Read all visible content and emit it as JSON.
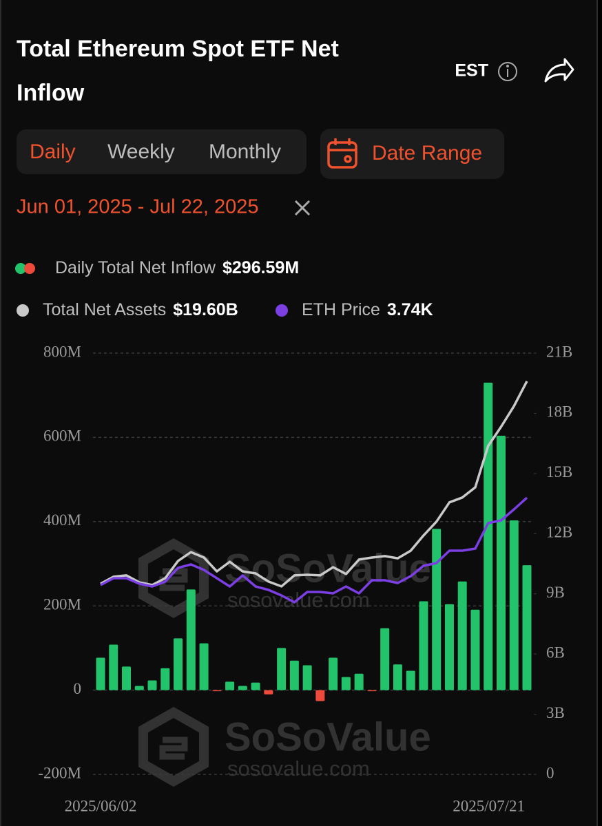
{
  "header": {
    "title_line1": "Total Ethereum Spot ETF Net",
    "title_line2": "Inflow",
    "timezone": "EST"
  },
  "tabs": [
    "Daily",
    "Weekly",
    "Monthly"
  ],
  "active_tab": 0,
  "date_range_button": "Date Range",
  "date_range": "Jun 01, 2025 - Jul 22, 2025",
  "watermark": {
    "brand": "SoSoValue",
    "site": "sosovalue.com"
  },
  "chart_data": {
    "type": "combo",
    "categories": [
      "2025/06/02",
      null,
      null,
      null,
      null,
      null,
      null,
      null,
      null,
      null,
      null,
      null,
      null,
      null,
      null,
      null,
      null,
      null,
      null,
      null,
      null,
      null,
      null,
      null,
      null,
      null,
      null,
      null,
      null,
      null,
      null,
      null,
      null,
      "2025/07/21"
    ],
    "ylim": [
      -200,
      800
    ],
    "yticks": [
      {
        "value": -200,
        "label": "-200M"
      },
      0,
      {
        "value": 200,
        "label": "200M"
      },
      {
        "value": 400,
        "label": "400M"
      },
      {
        "value": 600,
        "label": "600M"
      },
      {
        "value": 800,
        "label": "800M"
      }
    ],
    "y2lim": [
      0,
      21
    ],
    "y2ticks": [
      0,
      {
        "value": 3,
        "label": "3B"
      },
      {
        "value": 6,
        "label": "6B"
      },
      {
        "value": 9,
        "label": "9B"
      },
      {
        "value": 12,
        "label": "12B"
      },
      {
        "value": 15,
        "label": "15B"
      },
      {
        "value": 18,
        "label": "18B"
      },
      {
        "value": 21,
        "label": "21B"
      }
    ],
    "y3lim": [
      -200,
      5800
    ],
    "grid": true,
    "series": [
      {
        "name": "Daily Total Net Inflow",
        "type": "bar",
        "latest_label": "$296.59M",
        "color": "#22c36b",
        "negative_color": "#ee4a3c",
        "values": [
          77,
          108,
          56,
          10,
          23,
          52,
          123,
          239,
          111,
          -2,
          20,
          10,
          18,
          -10,
          100,
          70,
          59,
          -26,
          77,
          31,
          39,
          -1,
          147,
          61,
          46,
          211,
          383,
          204,
          258,
          191,
          730,
          604,
          403,
          296.59
        ]
      },
      {
        "name": "Total Net Assets",
        "type": "line",
        "axis": "y2",
        "latest_label": "$19.60B",
        "color": "#c9c9c9",
        "values": [
          9.5,
          9.85,
          9.92,
          9.57,
          9.44,
          9.78,
          10.64,
          11.08,
          10.81,
          10.12,
          10.6,
          10.12,
          10.02,
          9.61,
          9.37,
          9.92,
          9.95,
          9.92,
          10.33,
          9.99,
          10.71,
          10.81,
          10.88,
          10.77,
          11.15,
          11.91,
          12.6,
          13.56,
          13.8,
          14.31,
          16.37,
          17.33,
          18.36,
          19.6
        ]
      },
      {
        "name": "ETH Price",
        "type": "line",
        "axis": "y3",
        "latest_label": "3.74K",
        "color": "#7b3fe4",
        "values": [
          2496,
          2594,
          2594,
          2516,
          2476,
          2545,
          2741,
          2790,
          2712,
          2594,
          2476,
          2633,
          2476,
          2427,
          2349,
          2251,
          2398,
          2398,
          2378,
          2476,
          2378,
          2565,
          2565,
          2525,
          2623,
          2771,
          2810,
          2986,
          2986,
          3016,
          3378,
          3418,
          3575,
          3740
        ]
      }
    ]
  }
}
